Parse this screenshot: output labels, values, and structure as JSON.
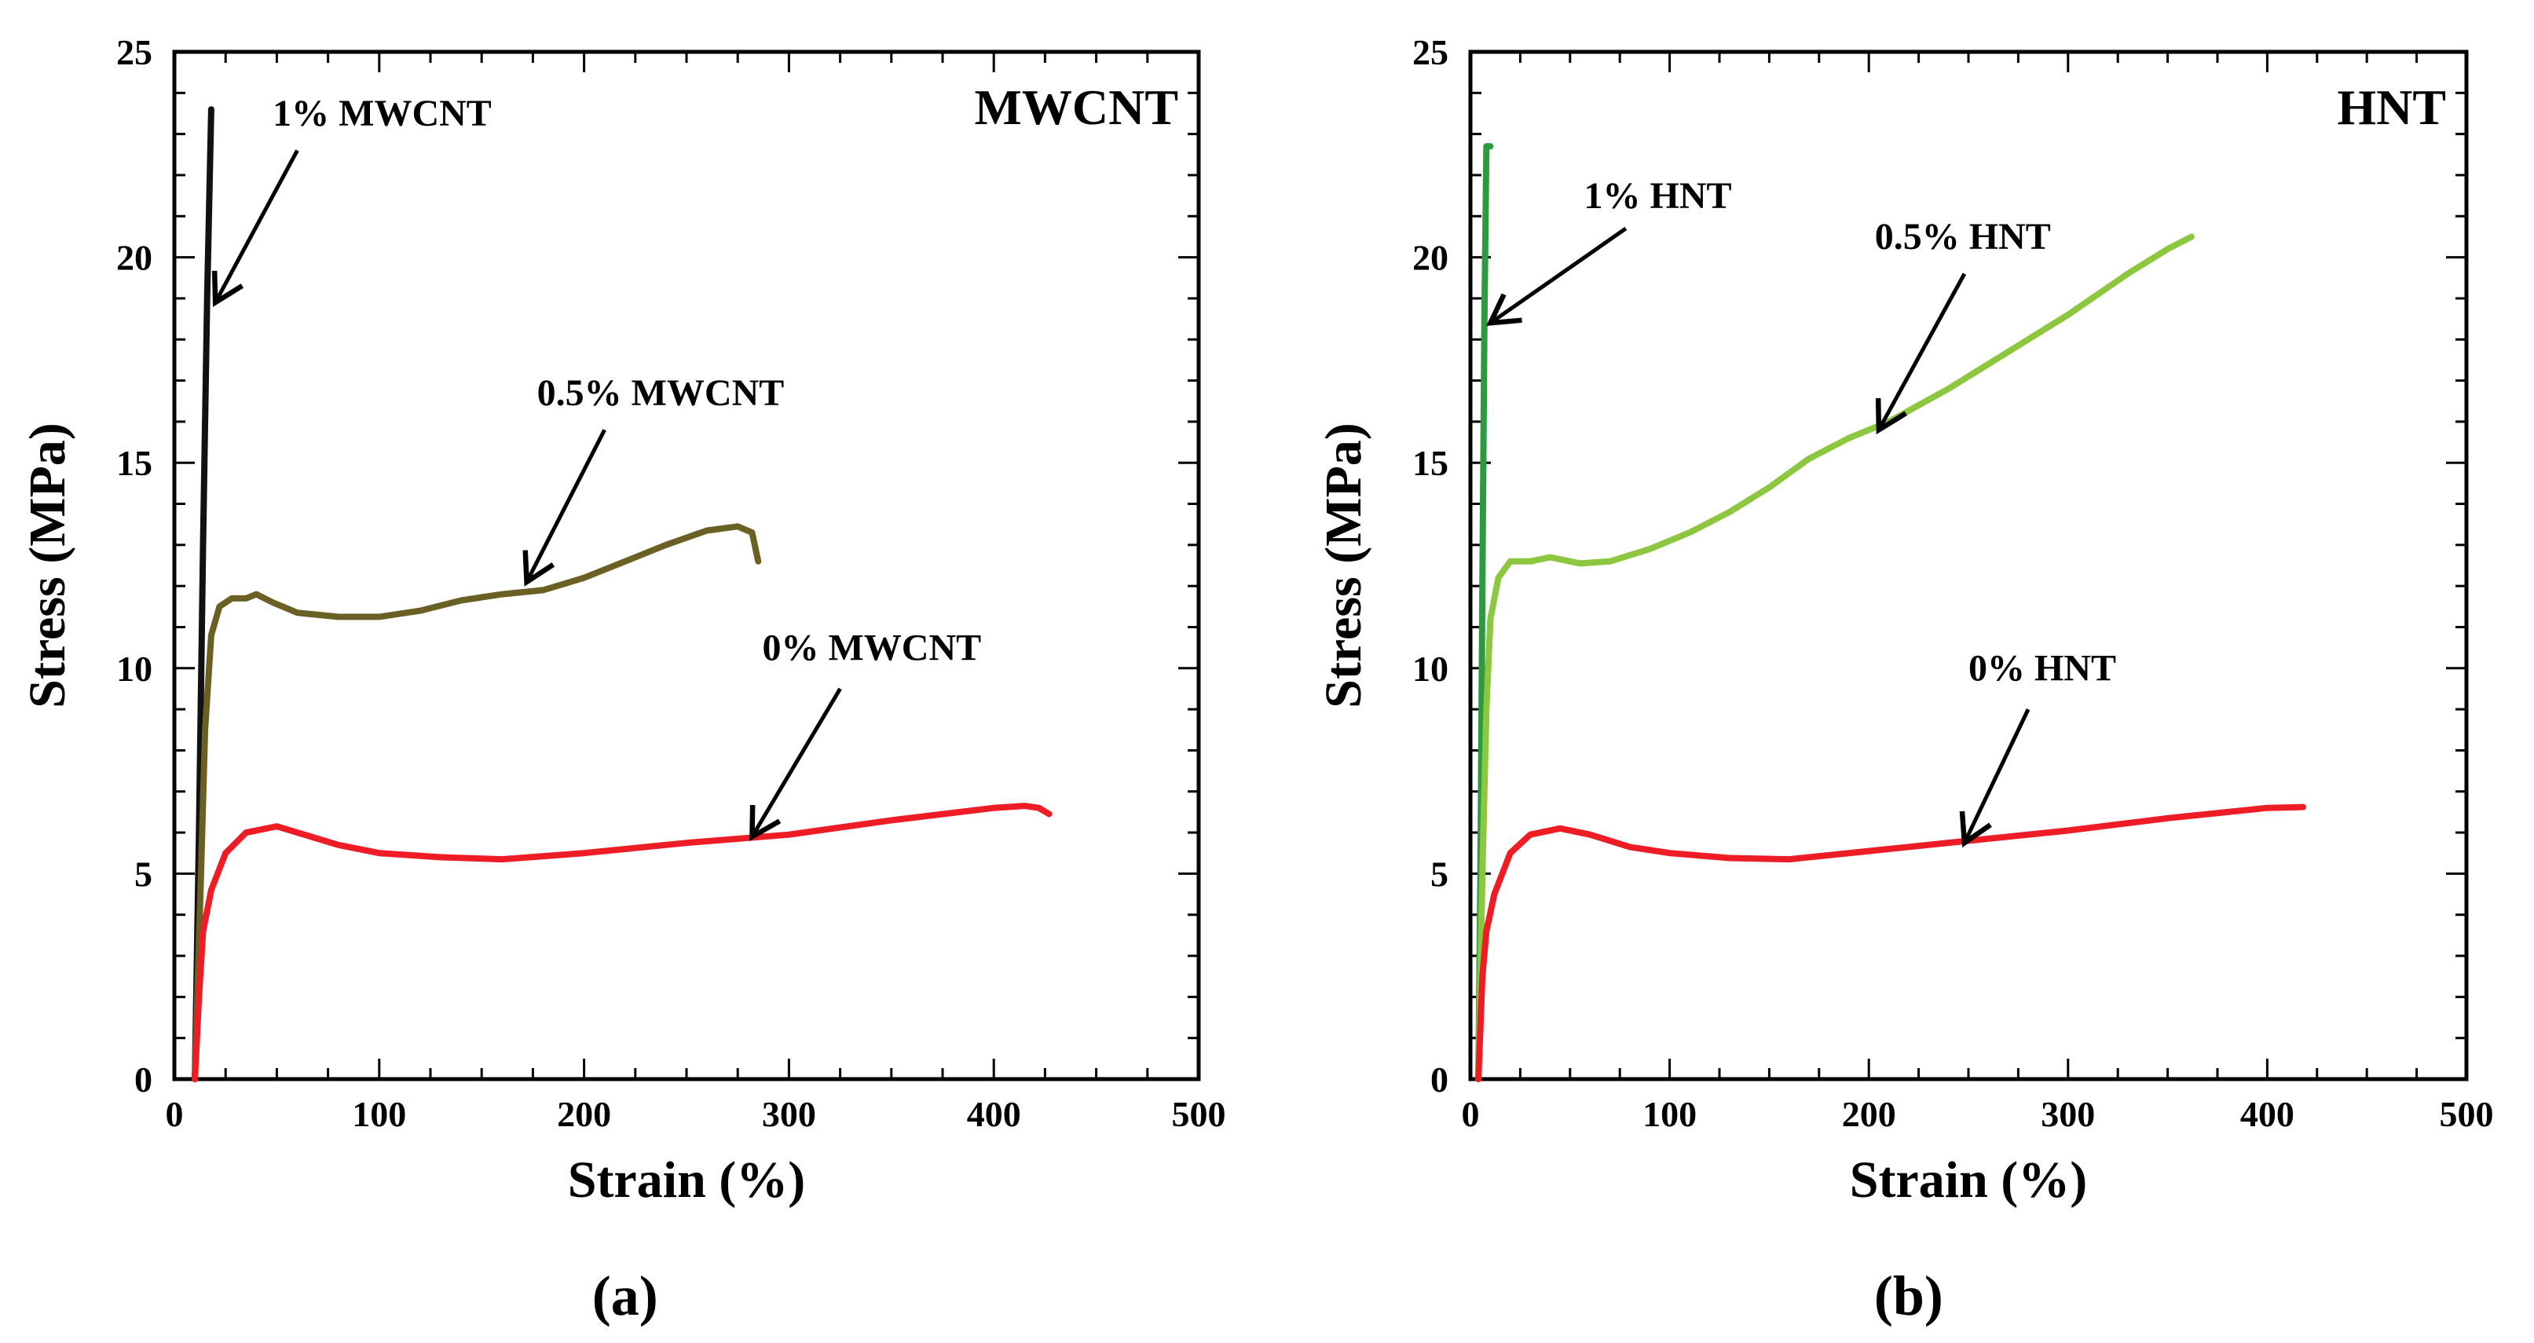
{
  "chart_data": [
    {
      "type": "line",
      "panel_label": "(a)",
      "title": "MWCNT",
      "xlabel": "Strain (%)",
      "ylabel": "Stress (MPa)",
      "xlim": [
        0,
        500
      ],
      "ylim": [
        0,
        25
      ],
      "xticks": [
        "0",
        "100",
        "200",
        "300",
        "400",
        "500"
      ],
      "yticks": [
        "0",
        "5",
        "10",
        "15",
        "20",
        "25"
      ],
      "grid": false,
      "series": [
        {
          "name": "1% MWCNT",
          "color": "#111111",
          "points": [
            [
              10,
              0
            ],
            [
              12,
              6
            ],
            [
              14,
              13
            ],
            [
              16,
              19
            ],
            [
              18,
              23.6
            ]
          ]
        },
        {
          "name": "0.5% MWCNT",
          "color": "#6b6024",
          "points": [
            [
              10,
              0
            ],
            [
              13,
              5
            ],
            [
              15,
              8.5
            ],
            [
              18,
              10.8
            ],
            [
              22,
              11.5
            ],
            [
              28,
              11.7
            ],
            [
              35,
              11.7
            ],
            [
              40,
              11.8
            ],
            [
              48,
              11.6
            ],
            [
              60,
              11.35
            ],
            [
              80,
              11.25
            ],
            [
              100,
              11.25
            ],
            [
              120,
              11.4
            ],
            [
              140,
              11.65
            ],
            [
              160,
              11.8
            ],
            [
              180,
              11.9
            ],
            [
              200,
              12.2
            ],
            [
              220,
              12.6
            ],
            [
              240,
              13.0
            ],
            [
              260,
              13.35
            ],
            [
              275,
              13.45
            ],
            [
              282,
              13.3
            ],
            [
              285,
              12.6
            ]
          ]
        },
        {
          "name": "0% MWCNT",
          "color": "#ee1c24",
          "points": [
            [
              10,
              0
            ],
            [
              12,
              2
            ],
            [
              14,
              3.6
            ],
            [
              18,
              4.6
            ],
            [
              25,
              5.5
            ],
            [
              35,
              6.0
            ],
            [
              50,
              6.15
            ],
            [
              60,
              6.0
            ],
            [
              80,
              5.7
            ],
            [
              100,
              5.5
            ],
            [
              130,
              5.4
            ],
            [
              160,
              5.35
            ],
            [
              200,
              5.5
            ],
            [
              250,
              5.75
            ],
            [
              300,
              5.95
            ],
            [
              350,
              6.3
            ],
            [
              400,
              6.6
            ],
            [
              415,
              6.65
            ],
            [
              422,
              6.6
            ],
            [
              427,
              6.45
            ]
          ]
        }
      ],
      "annotations": [
        {
          "label": "1% MWCNT",
          "text_at": [
            48,
            23.2
          ],
          "arrow_from": [
            60,
            22.6
          ],
          "arrow_to": [
            20,
            18.9
          ]
        },
        {
          "label": "0.5% MWCNT",
          "text_at": [
            177,
            16.4
          ],
          "arrow_from": [
            210,
            15.8
          ],
          "arrow_to": [
            172,
            12.1
          ]
        },
        {
          "label": "0% MWCNT",
          "text_at": [
            287,
            10.2
          ],
          "arrow_from": [
            325,
            9.5
          ],
          "arrow_to": [
            282,
            5.9
          ]
        }
      ]
    },
    {
      "type": "line",
      "panel_label": "(b)",
      "title": "HNT",
      "xlabel": "Strain (%)",
      "ylabel": "Stress (MPa)",
      "xlim": [
        0,
        500
      ],
      "ylim": [
        0,
        25
      ],
      "xticks": [
        "0",
        "100",
        "200",
        "300",
        "400",
        "500"
      ],
      "yticks": [
        "0",
        "5",
        "10",
        "15",
        "20",
        "25"
      ],
      "grid": false,
      "series": [
        {
          "name": "1% HNT",
          "color": "#2e9a3f",
          "points": [
            [
              4,
              0
            ],
            [
              5,
              5
            ],
            [
              6,
              12
            ],
            [
              7,
              18.5
            ],
            [
              8,
              22.7
            ],
            [
              10,
              22.7
            ]
          ]
        },
        {
          "name": "0.5% HNT",
          "color": "#8dc63f",
          "points": [
            [
              4,
              0
            ],
            [
              6,
              5
            ],
            [
              8,
              9
            ],
            [
              10,
              11.2
            ],
            [
              14,
              12.2
            ],
            [
              20,
              12.6
            ],
            [
              30,
              12.6
            ],
            [
              40,
              12.7
            ],
            [
              55,
              12.55
            ],
            [
              70,
              12.6
            ],
            [
              90,
              12.9
            ],
            [
              110,
              13.3
            ],
            [
              130,
              13.8
            ],
            [
              150,
              14.4
            ],
            [
              170,
              15.1
            ],
            [
              190,
              15.6
            ],
            [
              210,
              16.0
            ],
            [
              240,
              16.8
            ],
            [
              270,
              17.7
            ],
            [
              300,
              18.6
            ],
            [
              330,
              19.6
            ],
            [
              350,
              20.2
            ],
            [
              362,
              20.5
            ]
          ]
        },
        {
          "name": "0% HNT",
          "color": "#ee1c24",
          "points": [
            [
              4,
              0
            ],
            [
              6,
              2.5
            ],
            [
              8,
              3.6
            ],
            [
              12,
              4.5
            ],
            [
              20,
              5.5
            ],
            [
              30,
              5.95
            ],
            [
              45,
              6.1
            ],
            [
              60,
              5.95
            ],
            [
              80,
              5.65
            ],
            [
              100,
              5.5
            ],
            [
              130,
              5.38
            ],
            [
              160,
              5.35
            ],
            [
              200,
              5.55
            ],
            [
              250,
              5.8
            ],
            [
              300,
              6.05
            ],
            [
              350,
              6.35
            ],
            [
              400,
              6.6
            ],
            [
              418,
              6.62
            ]
          ]
        }
      ],
      "annotations": [
        {
          "label": "1% HNT",
          "text_at": [
            57,
            21.2
          ],
          "arrow_from": [
            78,
            20.7
          ],
          "arrow_to": [
            10,
            18.4
          ]
        },
        {
          "label": "0.5% HNT",
          "text_at": [
            203,
            20.2
          ],
          "arrow_from": [
            248,
            19.6
          ],
          "arrow_to": [
            205,
            15.8
          ]
        },
        {
          "label": "0% HNT",
          "text_at": [
            250,
            9.7
          ],
          "arrow_from": [
            280,
            9.0
          ],
          "arrow_to": [
            248,
            5.75
          ]
        }
      ]
    }
  ]
}
